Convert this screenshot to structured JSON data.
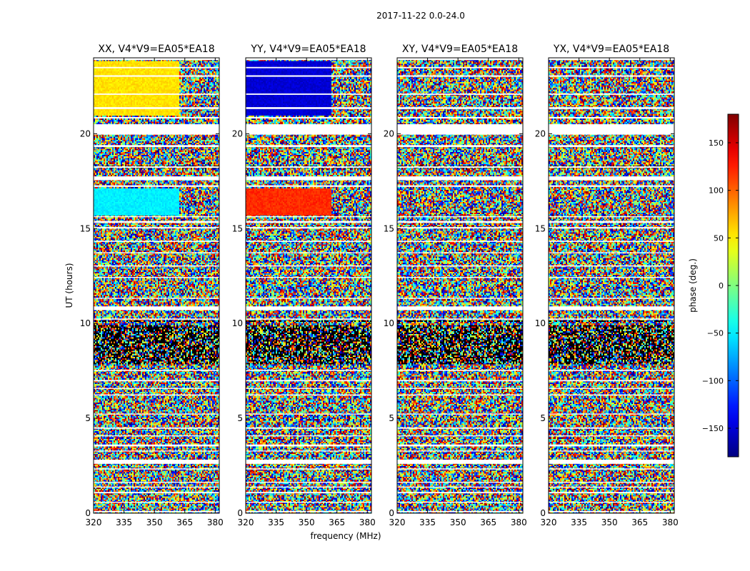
{
  "figure": {
    "suptitle": "2017-11-22 0.0-24.0",
    "xlabel": "frequency (MHz)",
    "ylabel": "UT (hours)",
    "colorbar_label": "phase (deg.)",
    "colormap": "jet"
  },
  "chart_data": [
    {
      "type": "heatmap",
      "title": "XX, V4*V9=EA05*EA18",
      "xlabel": "frequency (MHz)",
      "ylabel": "UT (hours)",
      "xlim": [
        320,
        382
      ],
      "ylim": [
        0,
        24
      ],
      "xticks": [
        320,
        335,
        350,
        365,
        380
      ],
      "yticks": [
        0,
        5,
        10,
        15,
        20
      ],
      "value_range": [
        -180,
        180
      ],
      "z_unit": "phase (deg.)",
      "coherent_regions": [
        {
          "utc_hours": [
            21.0,
            23.8
          ],
          "freq_mhz": [
            320,
            362
          ],
          "phase_deg": 55
        },
        {
          "utc_hours": [
            15.7,
            17.1
          ],
          "freq_mhz": [
            320,
            362
          ],
          "phase_deg": -50
        }
      ]
    },
    {
      "type": "heatmap",
      "title": "YY, V4*V9=EA05*EA18",
      "xlabel": "frequency (MHz)",
      "ylabel": "UT (hours)",
      "xlim": [
        320,
        382
      ],
      "ylim": [
        0,
        24
      ],
      "xticks": [
        320,
        335,
        350,
        365,
        380
      ],
      "yticks": [
        0,
        5,
        10,
        15,
        20
      ],
      "value_range": [
        -180,
        180
      ],
      "z_unit": "phase (deg.)",
      "coherent_regions": [
        {
          "utc_hours": [
            21.0,
            23.8
          ],
          "freq_mhz": [
            320,
            362
          ],
          "phase_deg": -150
        },
        {
          "utc_hours": [
            15.7,
            17.1
          ],
          "freq_mhz": [
            320,
            362
          ],
          "phase_deg": 120
        }
      ]
    },
    {
      "type": "heatmap",
      "title": "XY, V4*V9=EA05*EA18",
      "xlabel": "frequency (MHz)",
      "ylabel": "UT (hours)",
      "xlim": [
        320,
        382
      ],
      "ylim": [
        0,
        24
      ],
      "xticks": [
        320,
        335,
        350,
        365,
        380
      ],
      "yticks": [
        0,
        5,
        10,
        15,
        20
      ],
      "value_range": [
        -180,
        180
      ],
      "z_unit": "phase (deg.)",
      "coherent_regions": []
    },
    {
      "type": "heatmap",
      "title": "YX, V4*V9=EA05*EA18",
      "xlabel": "frequency (MHz)",
      "ylabel": "UT (hours)",
      "xlim": [
        320,
        382
      ],
      "ylim": [
        0,
        24
      ],
      "xticks": [
        320,
        335,
        350,
        365,
        380
      ],
      "yticks": [
        0,
        5,
        10,
        15,
        20
      ],
      "value_range": [
        -180,
        180
      ],
      "z_unit": "phase (deg.)",
      "coherent_regions": []
    }
  ],
  "colorbar": {
    "range": [
      -180,
      180
    ],
    "ticks": [
      -150,
      -100,
      -50,
      0,
      50,
      100,
      150
    ],
    "tick_labels": [
      "−150",
      "−100",
      "−50",
      "0",
      "50",
      "100",
      "150"
    ]
  },
  "flagged_bands_utc_hours": [
    [
      0.05,
      0.12
    ],
    [
      0.55,
      0.6
    ],
    [
      1.05,
      1.12
    ],
    [
      1.35,
      1.4
    ],
    [
      1.6,
      1.65
    ],
    [
      2.3,
      2.36
    ],
    [
      2.6,
      2.82
    ],
    [
      3.25,
      3.3
    ],
    [
      3.52,
      3.62
    ],
    [
      4.05,
      4.1
    ],
    [
      4.45,
      4.52
    ],
    [
      5.2,
      5.25
    ],
    [
      6.2,
      6.26
    ],
    [
      6.55,
      6.6
    ],
    [
      6.95,
      7.02
    ],
    [
      7.5,
      7.56
    ],
    [
      10.2,
      10.26
    ],
    [
      10.7,
      10.9
    ],
    [
      11.3,
      11.35
    ],
    [
      12.4,
      12.45
    ],
    [
      13.0,
      13.06
    ],
    [
      13.7,
      13.75
    ],
    [
      14.3,
      14.36
    ],
    [
      15.0,
      15.08
    ],
    [
      15.3,
      15.4
    ],
    [
      15.6,
      15.65
    ],
    [
      17.2,
      17.28
    ],
    [
      17.55,
      17.75
    ],
    [
      18.2,
      18.28
    ],
    [
      19.3,
      19.4
    ],
    [
      19.95,
      20.5
    ],
    [
      20.8,
      20.88
    ],
    [
      21.3,
      21.4
    ],
    [
      22.05,
      22.12
    ],
    [
      23.0,
      23.08
    ],
    [
      23.45,
      23.52
    ],
    [
      23.88,
      24.0
    ]
  ],
  "dark_bands_utc_hours": [
    [
      7.8,
      9.9
    ],
    [
      18.2,
      18.35
    ],
    [
      10.05,
      10.12
    ]
  ]
}
